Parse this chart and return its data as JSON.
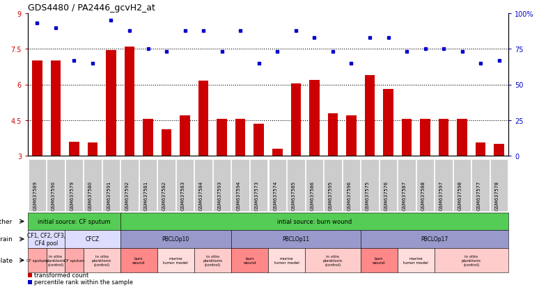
{
  "title": "GDS4480 / PA2446_gcvH2_at",
  "samples": [
    "GSM637589",
    "GSM637590",
    "GSM637579",
    "GSM637580",
    "GSM637591",
    "GSM637592",
    "GSM637581",
    "GSM637582",
    "GSM637583",
    "GSM637584",
    "GSM637593",
    "GSM637594",
    "GSM637573",
    "GSM637574",
    "GSM637585",
    "GSM637586",
    "GSM637595",
    "GSM637596",
    "GSM637575",
    "GSM637576",
    "GSM637587",
    "GSM637588",
    "GSM637597",
    "GSM637598",
    "GSM637577",
    "GSM637578"
  ],
  "bar_values": [
    7.0,
    7.0,
    3.6,
    3.55,
    7.45,
    7.6,
    4.55,
    4.1,
    4.7,
    6.15,
    4.55,
    4.55,
    4.35,
    3.3,
    6.05,
    6.2,
    4.8,
    4.7,
    6.4,
    5.8,
    4.55,
    4.55,
    4.55,
    4.55,
    3.55,
    3.5
  ],
  "dot_values": [
    93,
    90,
    67,
    65,
    95,
    88,
    75,
    73,
    88,
    88,
    73,
    88,
    65,
    73,
    88,
    83,
    73,
    65,
    83,
    83,
    73,
    75,
    75,
    73,
    65,
    67
  ],
  "ylim_left": [
    3,
    9
  ],
  "ylim_right": [
    0,
    100
  ],
  "yticks_left": [
    3,
    4.5,
    6,
    7.5,
    9
  ],
  "yticks_right": [
    0,
    25,
    50,
    75,
    100
  ],
  "ytick_labels_left": [
    "3",
    "4.5",
    "6",
    "7.5",
    "9"
  ],
  "ytick_labels_right": [
    "0",
    "25",
    "50",
    "75",
    "100%"
  ],
  "bar_color": "#cc0000",
  "dot_color": "#0000cc",
  "n_samples": 26,
  "other_row": [
    {
      "text": "initial source: CF sputum",
      "start": 0,
      "end": 5,
      "color": "#55cc55"
    },
    {
      "text": "intial source: burn wound",
      "start": 5,
      "end": 26,
      "color": "#55cc55"
    }
  ],
  "strain_rows": [
    {
      "text": "CF1, CF2, CF3,\nCF4 pool",
      "start": 0,
      "end": 2,
      "color": "#ddddff"
    },
    {
      "text": "CFCZ",
      "start": 2,
      "end": 5,
      "color": "#ddddff"
    },
    {
      "text": "PBCLOp10",
      "start": 5,
      "end": 11,
      "color": "#9999cc"
    },
    {
      "text": "PBCLOp11",
      "start": 11,
      "end": 18,
      "color": "#9999cc"
    },
    {
      "text": "PBCLOp17",
      "start": 18,
      "end": 26,
      "color": "#9999cc"
    }
  ],
  "isolate_rows": [
    {
      "text": "CF sputum",
      "start": 0,
      "end": 1,
      "color": "#ffaaaa"
    },
    {
      "text": "in vitro\nplanktonic\n(control)",
      "start": 1,
      "end": 2,
      "color": "#ffcccc"
    },
    {
      "text": "CF sputum",
      "start": 2,
      "end": 3,
      "color": "#ffaaaa"
    },
    {
      "text": "in vitro\nplanktonic\n(control)",
      "start": 3,
      "end": 5,
      "color": "#ffcccc"
    },
    {
      "text": "burn\nwound",
      "start": 5,
      "end": 7,
      "color": "#ff8888"
    },
    {
      "text": "murine\ntumor model",
      "start": 7,
      "end": 9,
      "color": "#ffdddd"
    },
    {
      "text": "in vitro\nplanktonic\n(control)",
      "start": 9,
      "end": 11,
      "color": "#ffcccc"
    },
    {
      "text": "burn\nwound",
      "start": 11,
      "end": 13,
      "color": "#ff8888"
    },
    {
      "text": "murine\ntumor model",
      "start": 13,
      "end": 15,
      "color": "#ffdddd"
    },
    {
      "text": "in vitro\nplanktonic\n(control)",
      "start": 15,
      "end": 18,
      "color": "#ffcccc"
    },
    {
      "text": "burn\nwound",
      "start": 18,
      "end": 20,
      "color": "#ff8888"
    },
    {
      "text": "murine\ntumor model",
      "start": 20,
      "end": 22,
      "color": "#ffdddd"
    },
    {
      "text": "in vitro\nplanktonic\n(control)",
      "start": 22,
      "end": 26,
      "color": "#ffcccc"
    }
  ]
}
